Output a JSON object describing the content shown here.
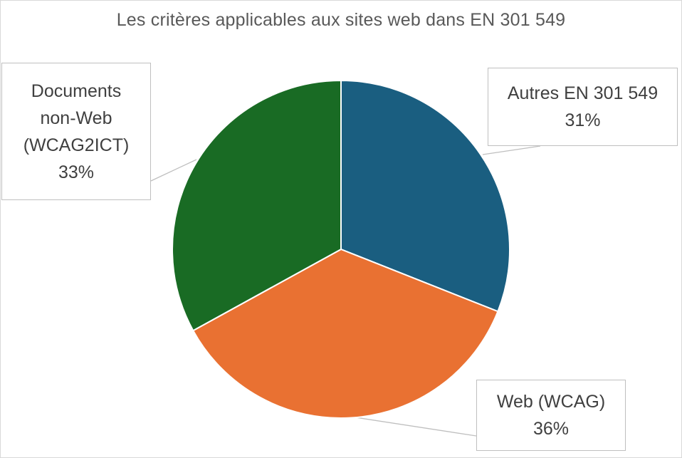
{
  "chart_data": {
    "type": "pie",
    "title": "Les critères applicables aux sites web dans EN 301 549",
    "slices": [
      {
        "label_lines": [
          "Autres EN 301 549"
        ],
        "value": 31,
        "value_label": "31%",
        "color": "#1a5e80"
      },
      {
        "label_lines": [
          "Web (WCAG)"
        ],
        "value": 36,
        "value_label": "36%",
        "color": "#e97132"
      },
      {
        "label_lines": [
          "Documents",
          "non-Web",
          "(WCAG2ICT)"
        ],
        "value": 33,
        "value_label": "33%",
        "color": "#196b24"
      }
    ],
    "start_angle_deg": 0,
    "direction": "clockwise",
    "legend": "none",
    "data_labels": "callouts"
  }
}
